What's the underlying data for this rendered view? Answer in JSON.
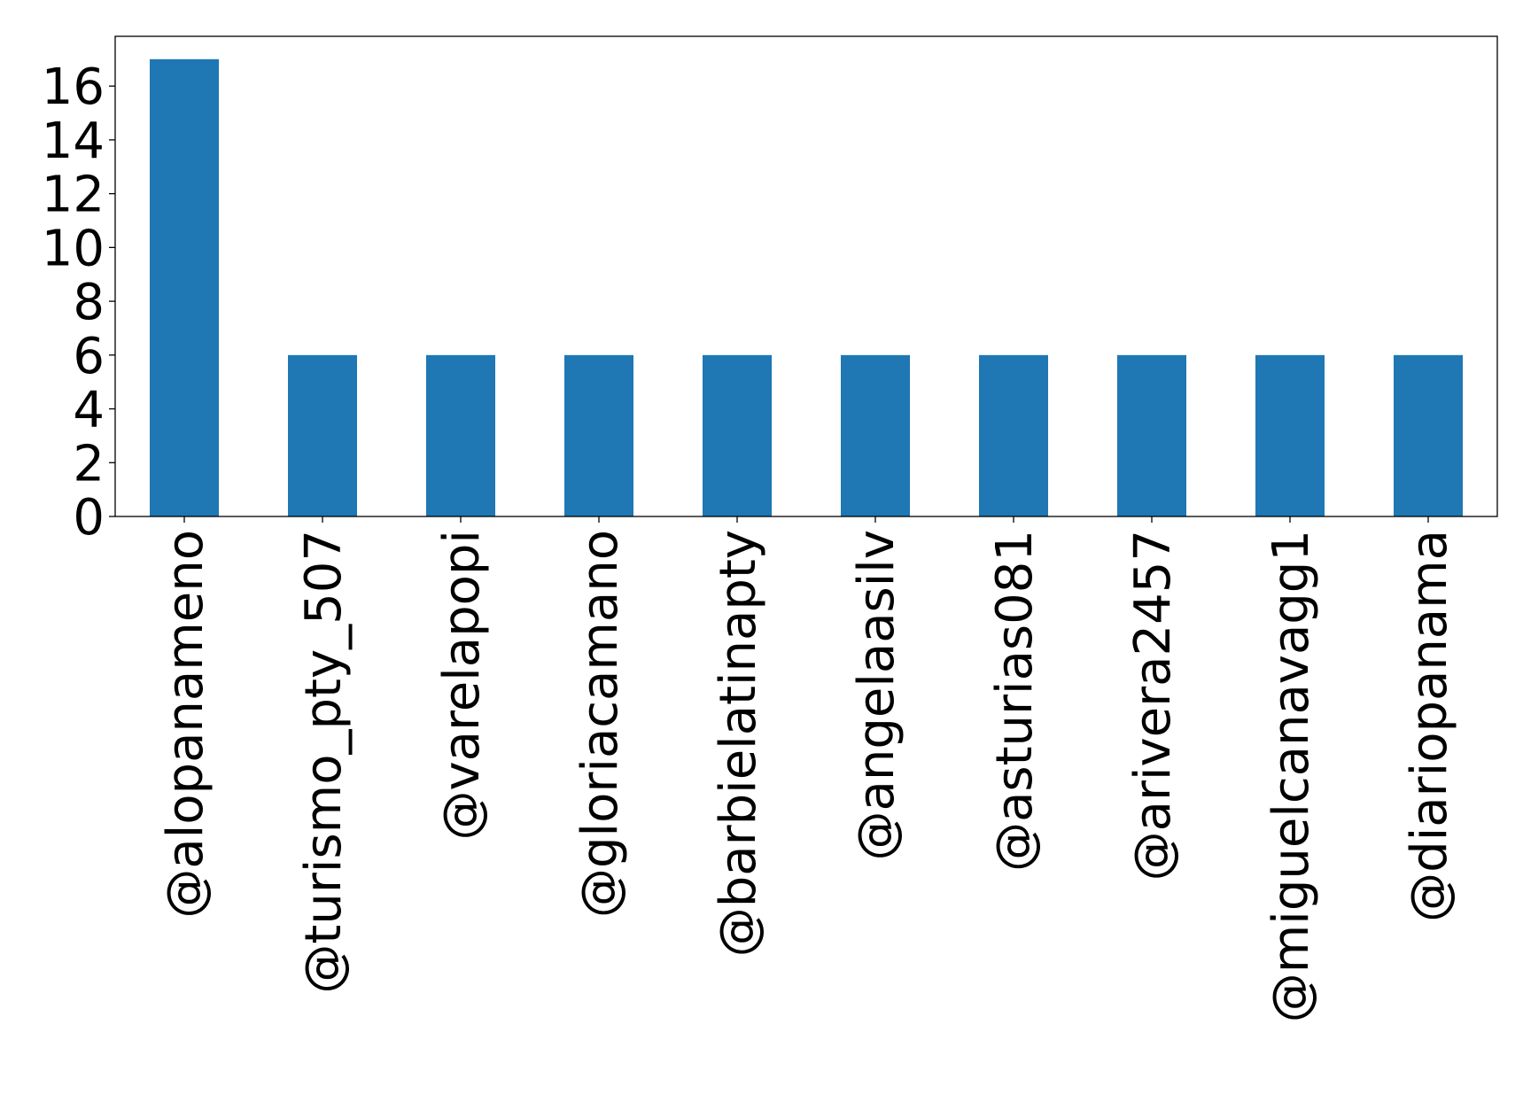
{
  "chart_data": {
    "type": "bar",
    "title": "",
    "xlabel": "",
    "ylabel": "",
    "categories": [
      "@alopanameno",
      "@turismo_pty_507",
      "@varelapopi",
      "@gloriacamano",
      "@barbielatinapty",
      "@angelaasilv",
      "@asturias081",
      "@arivera2457",
      "@miguelcanavagg1",
      "@diariopanama"
    ],
    "values": [
      17,
      6,
      6,
      6,
      6,
      6,
      6,
      6,
      6,
      6
    ],
    "ylim": [
      0,
      17.85
    ],
    "yticks": [
      "0",
      "2",
      "4",
      "6",
      "8",
      "10",
      "12",
      "14",
      "16"
    ],
    "grid": false,
    "legend": "none",
    "bar_color": "#1f77b4",
    "axis_color": "#000000"
  }
}
